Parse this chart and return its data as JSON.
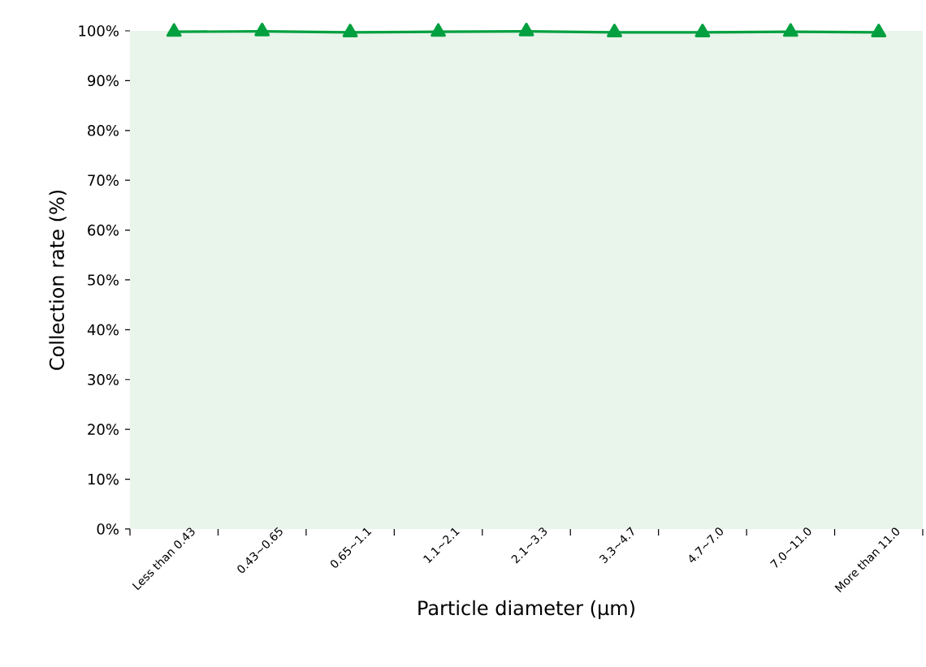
{
  "chart_data": {
    "type": "line",
    "xlabel": "Particle diameter (µm)",
    "ylabel": "Collection rate (%)",
    "categories": [
      "Less than 0.43",
      "0.43~0.65",
      "0.65~1.1",
      "1.1~2.1",
      "2.1~3.3",
      "3.3~4.7",
      "4.7~7.0",
      "7.0~11.0",
      "More than 11.0"
    ],
    "series": [
      {
        "color": "#00a040",
        "values": [
          99.8,
          99.9,
          99.7,
          99.8,
          99.9,
          99.7,
          99.7,
          99.8,
          99.7
        ]
      }
    ],
    "ylim": [
      0,
      100
    ],
    "yticks": [
      {
        "value": 0,
        "label": "0%"
      },
      {
        "value": 10,
        "label": "10%"
      },
      {
        "value": 20,
        "label": "20%"
      },
      {
        "value": 30,
        "label": "30%"
      },
      {
        "value": 40,
        "label": "40%"
      },
      {
        "value": 50,
        "label": "50%"
      },
      {
        "value": 60,
        "label": "60%"
      },
      {
        "value": 70,
        "label": "70%"
      },
      {
        "value": 80,
        "label": "80%"
      },
      {
        "value": 90,
        "label": "90%"
      },
      {
        "value": 100,
        "label": "100%"
      }
    ],
    "marker": "triangle",
    "line_style": "solid",
    "grid": false
  }
}
